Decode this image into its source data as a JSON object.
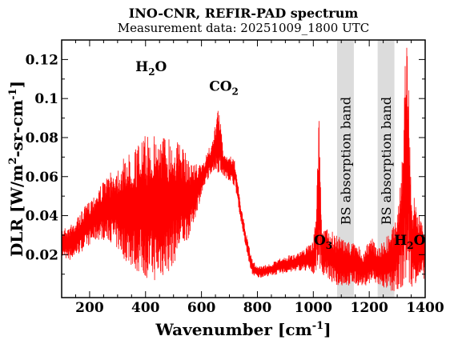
{
  "chart_data": {
    "type": "line",
    "title": "INO-CNR, REFIR-PAD spectrum",
    "subtitle": "Measurement data: 20251009_1800 UTC",
    "xlabel": "Wavenumber [cm",
    "xlabel_sup": "-1",
    "xlabel_end": "]",
    "ylabel": "DLR [W/m",
    "ylabel_sup1": "2",
    "ylabel_mid": "-sr-cm",
    "ylabel_sup2": "-1",
    "ylabel_end": "]",
    "xlim": [
      100,
      1400
    ],
    "ylim": [
      -0.002,
      0.13
    ],
    "x_ticks": [
      200,
      400,
      600,
      800,
      1000,
      1200,
      1400
    ],
    "y_ticks": [
      0.02,
      0.04,
      0.06,
      0.08,
      0.1,
      0.12
    ],
    "y_tick_labels": [
      "0.02",
      "0.04",
      "0.06",
      "0.08",
      "0.1",
      "0.12"
    ],
    "grid": false,
    "line_color": "#ff0000",
    "band_color": "#dcdcdc",
    "bands": [
      {
        "label": "BS absorption band",
        "x_range": [
          1085,
          1145
        ]
      },
      {
        "label": "BS absorption band",
        "x_range": [
          1230,
          1290
        ]
      }
    ],
    "annotations": [
      {
        "base": "H",
        "sub": "2",
        "rest": "O",
        "x": 420,
        "y": 0.114
      },
      {
        "base": "CO",
        "sub": "2",
        "rest": "",
        "x": 680,
        "y": 0.104
      },
      {
        "base": "O",
        "sub": "3",
        "rest": "",
        "x": 1035,
        "y": 0.025
      },
      {
        "base": "H",
        "sub": "2",
        "rest": "O",
        "x": 1345,
        "y": 0.025
      }
    ],
    "series": [
      {
        "x": [
          100,
          130,
          160,
          200,
          240,
          280,
          320,
          360,
          400,
          440,
          480,
          520,
          560,
          600,
          620,
          640,
          660,
          680,
          700,
          720,
          740,
          760,
          780,
          800,
          840,
          880,
          920,
          960,
          1000,
          1010,
          1020,
          1030,
          1040,
          1060,
          1080,
          1150,
          1180,
          1210,
          1230,
          1290,
          1300,
          1310,
          1320,
          1330,
          1340,
          1350,
          1360,
          1380,
          1400
        ],
        "upper": [
          0.033,
          0.035,
          0.04,
          0.048,
          0.056,
          0.063,
          0.069,
          0.075,
          0.081,
          0.082,
          0.082,
          0.078,
          0.068,
          0.066,
          0.073,
          0.078,
          0.097,
          0.072,
          0.071,
          0.068,
          0.046,
          0.031,
          0.018,
          0.014,
          0.015,
          0.018,
          0.02,
          0.022,
          0.028,
          0.04,
          0.104,
          0.03,
          0.035,
          0.033,
          0.03,
          0.026,
          0.022,
          0.03,
          0.024,
          0.035,
          0.045,
          0.06,
          0.075,
          0.129,
          0.13,
          0.045,
          0.05,
          0.04,
          0.035
        ],
        "lower": [
          0.018,
          0.017,
          0.02,
          0.025,
          0.028,
          0.026,
          0.018,
          0.012,
          0.008,
          0.006,
          0.01,
          0.02,
          0.03,
          0.05,
          0.058,
          0.063,
          0.062,
          0.06,
          0.058,
          0.055,
          0.038,
          0.022,
          0.01,
          0.008,
          0.009,
          0.01,
          0.011,
          0.012,
          0.01,
          0.012,
          0.015,
          0.008,
          0.01,
          0.006,
          0.004,
          0.004,
          0.004,
          0.005,
          0.004,
          0.0,
          0.002,
          0.003,
          0.002,
          0.003,
          0.002,
          0.003,
          0.005,
          0.006,
          0.008
        ]
      }
    ]
  }
}
